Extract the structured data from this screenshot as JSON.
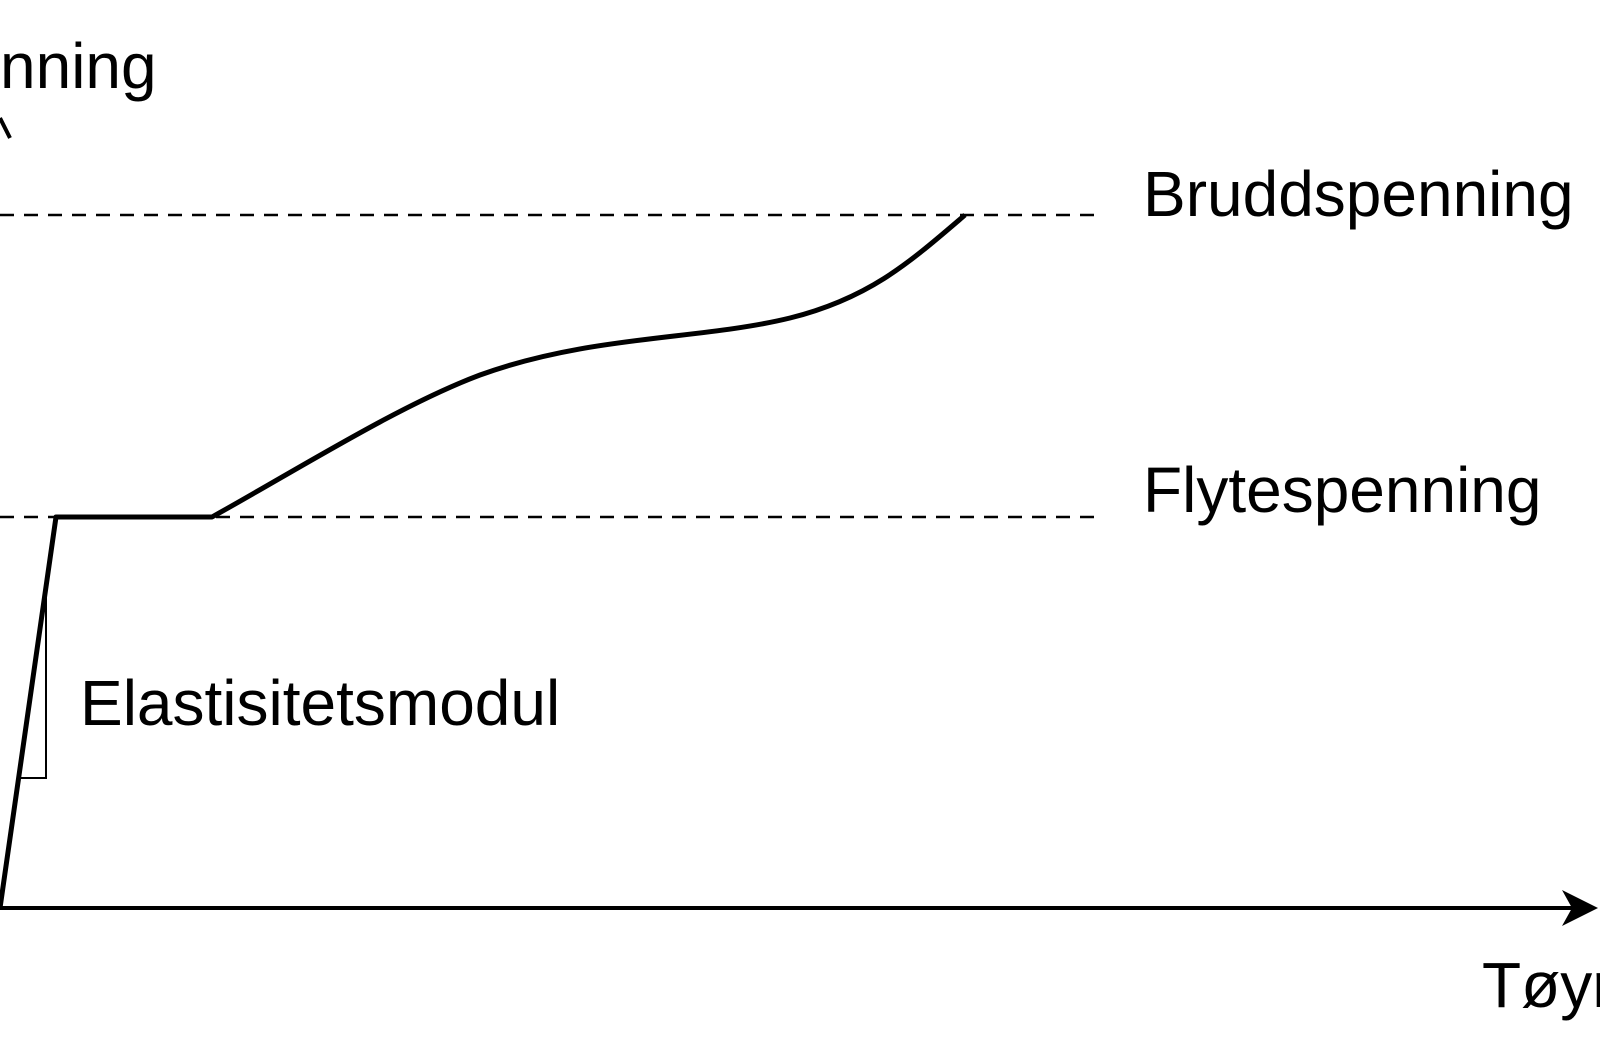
{
  "diagram": {
    "labels": {
      "y_axis": "nning",
      "x_axis": "Tøyr",
      "ultimate_stress": "Bruddspenning",
      "yield_stress": "Flytespenning",
      "elastic_modulus": "Elastisitetsmodul"
    },
    "colors": {
      "line": "#000000",
      "dashed": "#000000",
      "background": "#ffffff"
    }
  }
}
